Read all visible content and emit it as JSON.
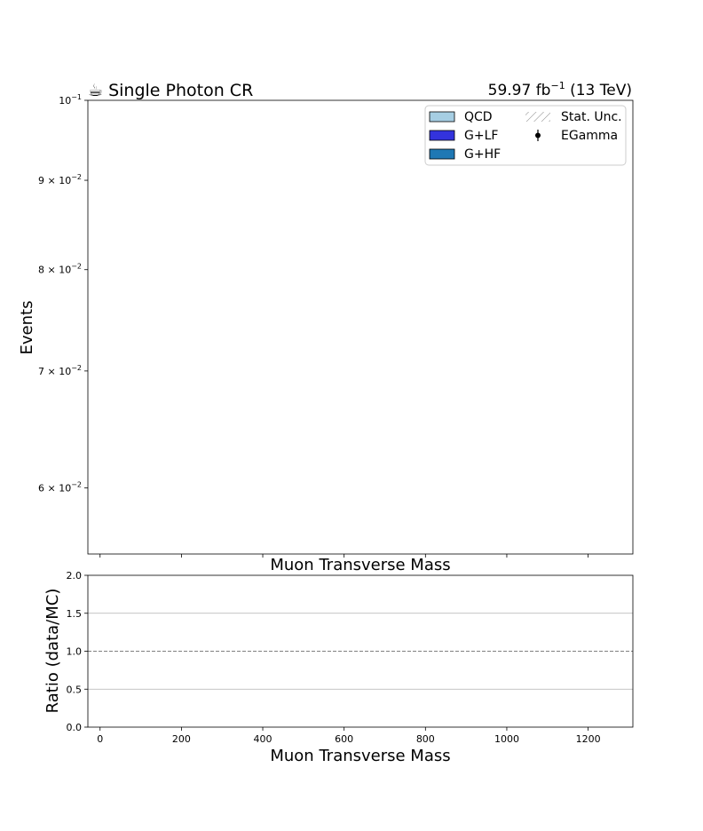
{
  "chart_data": [
    {
      "type": "bar",
      "title": "☕ Single Photon CR",
      "lumi_label": "59.97 fb",
      "lumi_exp": "−1",
      "lumi_energy": " (13 TeV)",
      "ylabel": "Events",
      "xlabel": "Muon Transverse Mass",
      "y_scale": "log",
      "ylim": [
        0.055,
        0.1
      ],
      "xlim": [
        -30,
        1310
      ],
      "yticks": [
        {
          "value": 0.1,
          "base": "10",
          "exp": "−1"
        },
        {
          "value": 0.09,
          "base": "9 × 10",
          "exp": "−2"
        },
        {
          "value": 0.08,
          "base": "8 × 10",
          "exp": "−2"
        },
        {
          "value": 0.07,
          "base": "7 × 10",
          "exp": "−2"
        },
        {
          "value": 0.06,
          "base": "6 × 10",
          "exp": "−2"
        }
      ],
      "xticks": [
        0,
        200,
        400,
        600,
        800,
        1000,
        1200
      ],
      "series": [],
      "legend": {
        "position": "top-right",
        "entries": [
          {
            "label": "QCD",
            "kind": "fill",
            "color": "#a6cee3"
          },
          {
            "label": "G+LF",
            "kind": "fill",
            "color": "#3333dd"
          },
          {
            "label": "G+HF",
            "kind": "fill",
            "color": "#1f78b4"
          },
          {
            "label": "Stat. Unc.",
            "kind": "hatch",
            "color": "#888888"
          },
          {
            "label": "EGamma",
            "kind": "marker",
            "color": "#000000"
          }
        ]
      }
    },
    {
      "type": "line",
      "ylabel": "Ratio (data/MC)",
      "xlabel": "Muon Transverse Mass",
      "ylim": [
        0,
        2
      ],
      "xlim": [
        -30,
        1310
      ],
      "yticks": [
        "0.0",
        "0.5",
        "1.0",
        "1.5",
        "2.0"
      ],
      "xticks": [
        0,
        200,
        400,
        600,
        800,
        1000,
        1200
      ],
      "grid": true,
      "reference_line": 1.0,
      "series": []
    }
  ]
}
